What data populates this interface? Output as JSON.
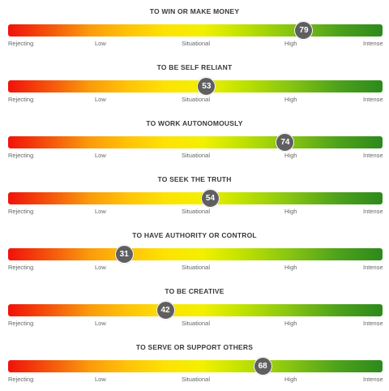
{
  "chart_data": {
    "type": "bar",
    "scale_min": 0,
    "scale_max": 100,
    "scale_labels": [
      "Rejecting",
      "Low",
      "Situational",
      "High",
      "Intense"
    ],
    "items": [
      {
        "title": "TO WIN OR MAKE MONEY",
        "value": 79
      },
      {
        "title": "TO BE SELF RELIANT",
        "value": 53
      },
      {
        "title": "TO WORK AUTONOMOUSLY",
        "value": 74
      },
      {
        "title": "TO SEEK THE TRUTH",
        "value": 54
      },
      {
        "title": "TO HAVE AUTHORITY OR CONTROL",
        "value": 31
      },
      {
        "title": "TO BE CREATIVE",
        "value": 42
      },
      {
        "title": "TO SERVE OR SUPPORT OTHERS",
        "value": 68
      }
    ]
  }
}
